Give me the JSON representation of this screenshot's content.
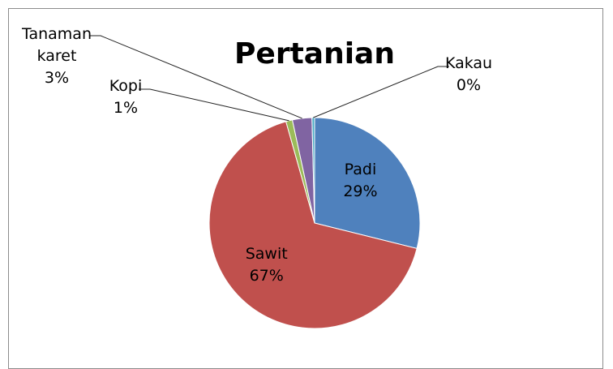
{
  "chart_data": {
    "type": "pie",
    "title": "Pertanian",
    "slices": [
      {
        "label": "Padi",
        "value": 29,
        "value_label": "29%",
        "color": "#4F81BD"
      },
      {
        "label": "Sawit",
        "value": 67,
        "value_label": "67%",
        "color": "#C0504D"
      },
      {
        "label": "Kopi",
        "value": 1,
        "value_label": "1%",
        "color": "#9BBB59"
      },
      {
        "label": "Tanaman karet",
        "label_lines": [
          "Tanaman",
          "karet"
        ],
        "value": 3,
        "value_label": "3%",
        "color": "#8064A2"
      },
      {
        "label": "Kakau",
        "value": 0,
        "value_label": "0%",
        "color": "#4BACC6"
      }
    ],
    "start_angle_deg": 0,
    "direction": "clockwise",
    "legend": "none"
  }
}
